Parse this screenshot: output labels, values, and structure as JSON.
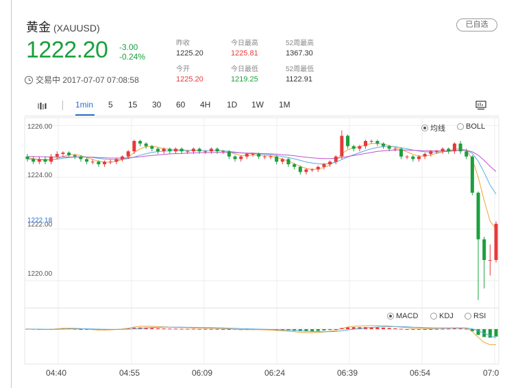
{
  "header": {
    "name": "黄金",
    "code": "(XAUUSD)",
    "watch_label": "已自选",
    "price": "1222.20",
    "change": "-3.00",
    "change_pct": "-0.24%",
    "status": "交易中 2017-07-07 07:08:58"
  },
  "stats": {
    "prev_close_label": "昨收",
    "prev_close": "1225.20",
    "open_label": "今开",
    "open": "1225.20",
    "high_label": "今日最高",
    "high": "1225.81",
    "low_label": "今日最低",
    "low": "1219.25",
    "wk52_high_label": "52周最高",
    "wk52_high": "1367.30",
    "wk52_low_label": "52周最低",
    "wk52_low": "1122.91"
  },
  "toolbar": {
    "periods": [
      "1min",
      "5",
      "15",
      "30",
      "60",
      "4H",
      "1D",
      "1W",
      "1M"
    ],
    "active_period": "1min"
  },
  "main_chart": {
    "y_ticks": [
      "1226.00",
      "1224.00",
      "1222.00",
      "1220.00"
    ],
    "price_tag": "1222.18",
    "legend": [
      "均线",
      "BOLL"
    ],
    "legend_selected": "均线"
  },
  "sub_chart": {
    "legend": [
      "MACD",
      "KDJ",
      "RSI"
    ],
    "legend_selected": "MACD"
  },
  "x_ticks": [
    "04:40",
    "04:55",
    "06:09",
    "06:24",
    "06:39",
    "06:54",
    "07:0"
  ],
  "colors": {
    "up": "#e63a3a",
    "down": "#1aa03d",
    "accent": "#2a6dcc"
  },
  "chart_data": {
    "type": "candlestick",
    "ylim": [
      1219.0,
      1226.3
    ],
    "opens": [
      1224.8,
      1224.7,
      1224.6,
      1224.7,
      1224.6,
      1224.8,
      1224.9,
      1224.95,
      1224.85,
      1224.8,
      1224.7,
      1224.6,
      1224.6,
      1224.5,
      1224.6,
      1224.6,
      1224.7,
      1224.8,
      1225.0,
      1225.4,
      1225.3,
      1225.2,
      1225.1,
      1225.0,
      1225.1,
      1225.0,
      1225.1,
      1225.0,
      1225.0,
      1225.1,
      1225.0,
      1225.0,
      1225.1,
      1225.0,
      1225.0,
      1224.8,
      1224.7,
      1224.8,
      1224.9,
      1224.9,
      1224.8,
      1224.8,
      1224.8,
      1224.6,
      1224.7,
      1224.5,
      1224.4,
      1224.2,
      1224.3,
      1224.3,
      1224.4,
      1224.5,
      1224.6,
      1224.8,
      1225.6,
      1225.2,
      1225.1,
      1225.2,
      1225.4,
      1225.4,
      1225.3,
      1225.2,
      1225.1,
      1225.1,
      1224.8,
      1224.8,
      1224.7,
      1224.8,
      1224.9,
      1225.0,
      1225.0,
      1225.1,
      1225.0,
      1225.3,
      1225.0,
      1224.8,
      1223.4,
      1221.6,
      1220.8,
      1220.8
    ],
    "closes": [
      1224.7,
      1224.6,
      1224.7,
      1224.6,
      1224.8,
      1224.9,
      1224.95,
      1224.85,
      1224.8,
      1224.7,
      1224.6,
      1224.6,
      1224.5,
      1224.6,
      1224.6,
      1224.7,
      1224.8,
      1225.0,
      1225.4,
      1225.3,
      1225.2,
      1225.1,
      1225.0,
      1225.1,
      1225.0,
      1225.1,
      1225.0,
      1225.0,
      1225.1,
      1225.0,
      1225.0,
      1225.1,
      1225.0,
      1225.0,
      1224.8,
      1224.7,
      1224.8,
      1224.9,
      1224.9,
      1224.8,
      1224.8,
      1224.8,
      1224.6,
      1224.7,
      1224.5,
      1224.4,
      1224.2,
      1224.3,
      1224.3,
      1224.4,
      1224.5,
      1224.6,
      1224.8,
      1225.6,
      1225.2,
      1225.1,
      1225.2,
      1225.4,
      1225.4,
      1225.3,
      1225.2,
      1225.1,
      1225.1,
      1224.8,
      1224.8,
      1224.7,
      1224.8,
      1224.9,
      1225.0,
      1225.0,
      1225.1,
      1225.0,
      1225.3,
      1225.0,
      1224.8,
      1223.4,
      1221.6,
      1220.8,
      1220.8,
      1222.2
    ],
    "highs": [
      1224.9,
      1224.8,
      1224.8,
      1224.8,
      1224.9,
      1225.0,
      1225.0,
      1225.0,
      1224.9,
      1224.85,
      1224.75,
      1224.7,
      1224.65,
      1224.65,
      1224.7,
      1224.75,
      1224.85,
      1225.05,
      1225.45,
      1225.45,
      1225.35,
      1225.25,
      1225.15,
      1225.15,
      1225.15,
      1225.15,
      1225.15,
      1225.05,
      1225.15,
      1225.15,
      1225.05,
      1225.15,
      1225.15,
      1225.05,
      1225.05,
      1224.85,
      1224.85,
      1224.95,
      1224.95,
      1224.95,
      1224.85,
      1224.85,
      1224.85,
      1224.75,
      1224.75,
      1224.55,
      1224.45,
      1224.35,
      1224.35,
      1224.45,
      1224.55,
      1224.65,
      1224.85,
      1225.81,
      1225.65,
      1225.25,
      1225.25,
      1225.45,
      1225.45,
      1225.45,
      1225.35,
      1225.25,
      1225.15,
      1225.15,
      1224.85,
      1224.85,
      1224.85,
      1224.95,
      1225.05,
      1225.05,
      1225.15,
      1225.15,
      1225.35,
      1225.4,
      1225.1,
      1224.85,
      1223.45,
      1221.7,
      1221.4,
      1222.3
    ],
    "lows": [
      1224.6,
      1224.5,
      1224.5,
      1224.5,
      1224.5,
      1224.7,
      1224.8,
      1224.8,
      1224.7,
      1224.6,
      1224.5,
      1224.5,
      1224.4,
      1224.4,
      1224.5,
      1224.5,
      1224.6,
      1224.7,
      1224.9,
      1225.2,
      1225.1,
      1225.0,
      1224.9,
      1224.9,
      1224.9,
      1224.9,
      1224.9,
      1224.9,
      1224.9,
      1224.9,
      1224.9,
      1224.9,
      1224.9,
      1224.9,
      1224.7,
      1224.6,
      1224.6,
      1224.7,
      1224.8,
      1224.7,
      1224.7,
      1224.7,
      1224.5,
      1224.5,
      1224.4,
      1224.3,
      1224.1,
      1224.1,
      1224.2,
      1224.2,
      1224.3,
      1224.4,
      1224.5,
      1224.7,
      1225.1,
      1225.0,
      1225.0,
      1225.1,
      1225.3,
      1225.2,
      1225.1,
      1225.0,
      1225.0,
      1224.7,
      1224.7,
      1224.6,
      1224.6,
      1224.7,
      1224.8,
      1224.9,
      1224.9,
      1224.9,
      1224.9,
      1224.9,
      1224.7,
      1223.3,
      1219.25,
      1219.7,
      1220.2,
      1220.7
    ],
    "ma_fast": [
      1224.75,
      1224.72,
      1224.68,
      1224.66,
      1224.66,
      1224.72,
      1224.8,
      1224.86,
      1224.88,
      1224.84,
      1224.76,
      1224.68,
      1224.62,
      1224.58,
      1224.58,
      1224.61,
      1224.68,
      1224.78,
      1224.95,
      1225.1,
      1225.18,
      1225.2,
      1225.16,
      1225.1,
      1225.08,
      1225.06,
      1225.06,
      1225.04,
      1225.04,
      1225.04,
      1225.03,
      1225.03,
      1225.04,
      1225.03,
      1224.98,
      1224.9,
      1224.84,
      1224.84,
      1224.85,
      1224.85,
      1224.84,
      1224.82,
      1224.76,
      1224.7,
      1224.62,
      1224.52,
      1224.42,
      1224.34,
      1224.3,
      1224.32,
      1224.38,
      1224.48,
      1224.62,
      1224.92,
      1225.06,
      1225.14,
      1225.18,
      1225.25,
      1225.3,
      1225.3,
      1225.28,
      1225.22,
      1225.16,
      1225.06,
      1224.98,
      1224.88,
      1224.82,
      1224.82,
      1224.86,
      1224.92,
      1224.98,
      1225.02,
      1225.08,
      1225.1,
      1225.04,
      1224.7,
      1224.0,
      1223.1,
      1222.3,
      1222.0
    ],
    "ma_slow": [
      1224.7,
      1224.7,
      1224.69,
      1224.68,
      1224.68,
      1224.7,
      1224.73,
      1224.76,
      1224.78,
      1224.79,
      1224.78,
      1224.76,
      1224.73,
      1224.7,
      1224.68,
      1224.68,
      1224.69,
      1224.72,
      1224.78,
      1224.85,
      1224.91,
      1224.96,
      1224.99,
      1225.01,
      1225.02,
      1225.03,
      1225.03,
      1225.03,
      1225.03,
      1225.03,
      1225.03,
      1225.03,
      1225.03,
      1225.02,
      1225.0,
      1224.97,
      1224.94,
      1224.92,
      1224.91,
      1224.9,
      1224.89,
      1224.87,
      1224.84,
      1224.8,
      1224.76,
      1224.71,
      1224.65,
      1224.59,
      1224.55,
      1224.52,
      1224.51,
      1224.53,
      1224.58,
      1224.68,
      1224.78,
      1224.87,
      1224.95,
      1225.03,
      1225.1,
      1225.15,
      1225.18,
      1225.19,
      1225.18,
      1225.14,
      1225.1,
      1225.05,
      1225.01,
      1224.98,
      1224.97,
      1224.97,
      1224.98,
      1225.0,
      1225.02,
      1225.04,
      1225.04,
      1224.92,
      1224.62,
      1224.18,
      1223.7,
      1223.35
    ],
    "ma_long": [
      1224.8,
      1224.8,
      1224.79,
      1224.79,
      1224.78,
      1224.78,
      1224.78,
      1224.78,
      1224.78,
      1224.78,
      1224.78,
      1224.77,
      1224.76,
      1224.75,
      1224.74,
      1224.74,
      1224.74,
      1224.75,
      1224.77,
      1224.79,
      1224.82,
      1224.84,
      1224.86,
      1224.88,
      1224.9,
      1224.91,
      1224.92,
      1224.93,
      1224.94,
      1224.95,
      1224.95,
      1224.96,
      1224.96,
      1224.96,
      1224.96,
      1224.95,
      1224.94,
      1224.93,
      1224.93,
      1224.92,
      1224.91,
      1224.9,
      1224.89,
      1224.87,
      1224.85,
      1224.83,
      1224.8,
      1224.77,
      1224.75,
      1224.73,
      1224.72,
      1224.72,
      1224.73,
      1224.76,
      1224.8,
      1224.84,
      1224.88,
      1224.92,
      1224.96,
      1225.0,
      1225.02,
      1225.04,
      1225.05,
      1225.05,
      1225.05,
      1225.04,
      1225.03,
      1225.02,
      1225.02,
      1225.02,
      1225.02,
      1225.02,
      1225.03,
      1225.04,
      1225.04,
      1224.98,
      1224.85,
      1224.65,
      1224.42,
      1224.22
    ],
    "macd_hist": [
      0.02,
      0.01,
      -0.01,
      -0.02,
      0.0,
      0.03,
      0.05,
      0.04,
      0.02,
      0.0,
      -0.02,
      -0.04,
      -0.05,
      -0.04,
      -0.03,
      -0.01,
      0.02,
      0.05,
      0.09,
      0.1,
      0.09,
      0.07,
      0.05,
      0.04,
      0.03,
      0.03,
      0.02,
      0.02,
      0.02,
      0.01,
      0.01,
      0.01,
      0.01,
      0.0,
      -0.02,
      -0.04,
      -0.05,
      -0.04,
      -0.03,
      -0.03,
      -0.03,
      -0.04,
      -0.06,
      -0.07,
      -0.09,
      -0.11,
      -0.13,
      -0.14,
      -0.13,
      -0.11,
      -0.08,
      -0.05,
      -0.01,
      0.08,
      0.11,
      0.12,
      0.12,
      0.13,
      0.12,
      0.11,
      0.09,
      0.07,
      0.05,
      0.02,
      0.0,
      -0.02,
      -0.02,
      -0.01,
      0.0,
      0.01,
      0.02,
      0.03,
      0.04,
      0.04,
      0.02,
      -0.12,
      -0.35,
      -0.48,
      -0.52,
      -0.45
    ],
    "macd_dif": [
      0.01,
      0.0,
      -0.01,
      -0.02,
      -0.01,
      0.02,
      0.05,
      0.06,
      0.05,
      0.03,
      0.0,
      -0.03,
      -0.05,
      -0.05,
      -0.04,
      -0.02,
      0.01,
      0.06,
      0.13,
      0.17,
      0.18,
      0.17,
      0.15,
      0.14,
      0.12,
      0.11,
      0.1,
      0.09,
      0.08,
      0.07,
      0.06,
      0.06,
      0.05,
      0.04,
      0.02,
      -0.01,
      -0.03,
      -0.03,
      -0.03,
      -0.03,
      -0.04,
      -0.05,
      -0.08,
      -0.1,
      -0.13,
      -0.16,
      -0.19,
      -0.21,
      -0.21,
      -0.2,
      -0.17,
      -0.13,
      -0.08,
      0.05,
      0.13,
      0.17,
      0.19,
      0.21,
      0.22,
      0.22,
      0.21,
      0.19,
      0.16,
      0.12,
      0.09,
      0.06,
      0.05,
      0.04,
      0.04,
      0.05,
      0.06,
      0.06,
      0.08,
      0.08,
      0.06,
      -0.15,
      -0.5,
      -0.8,
      -0.95,
      -0.95
    ],
    "macd_dea": [
      0.0,
      0.0,
      0.0,
      -0.01,
      -0.01,
      -0.01,
      0.0,
      0.01,
      0.02,
      0.02,
      0.02,
      0.01,
      0.0,
      -0.01,
      -0.02,
      -0.02,
      -0.01,
      0.0,
      0.02,
      0.05,
      0.08,
      0.1,
      0.11,
      0.12,
      0.12,
      0.12,
      0.12,
      0.11,
      0.11,
      0.1,
      0.09,
      0.09,
      0.08,
      0.07,
      0.06,
      0.05,
      0.03,
      0.02,
      0.01,
      0.0,
      -0.01,
      -0.02,
      -0.03,
      -0.05,
      -0.06,
      -0.08,
      -0.1,
      -0.12,
      -0.14,
      -0.15,
      -0.16,
      -0.15,
      -0.14,
      -0.1,
      -0.05,
      0.0,
      0.04,
      0.08,
      0.11,
      0.13,
      0.15,
      0.16,
      0.16,
      0.15,
      0.14,
      0.12,
      0.11,
      0.09,
      0.08,
      0.07,
      0.07,
      0.07,
      0.07,
      0.07,
      0.07,
      0.02,
      -0.1,
      -0.25,
      -0.4,
      -0.52
    ]
  }
}
